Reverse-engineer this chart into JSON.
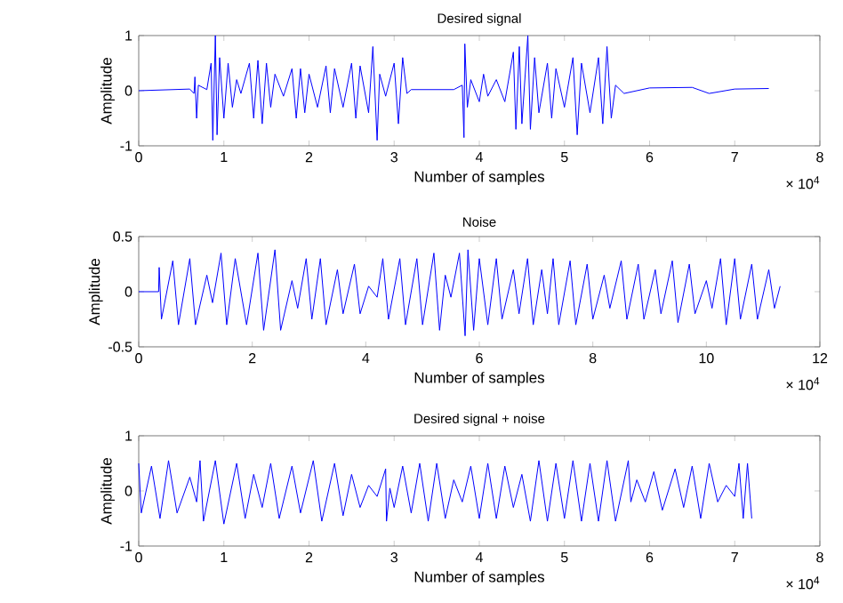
{
  "chart_data": [
    {
      "type": "line",
      "title": "Desired signal",
      "xlabel": "Number of samples",
      "ylabel": "Amplitude",
      "color": "#0000ff",
      "xlim": [
        0,
        8
      ],
      "ylim": [
        -1,
        1
      ],
      "xticks": [
        0,
        1,
        2,
        3,
        4,
        5,
        6,
        7,
        8
      ],
      "yticks": [
        -1,
        0,
        1
      ],
      "annotations": [
        "× 10$^{4}$"
      ],
      "x": [
        0,
        0.6,
        0.65,
        0.66,
        0.68,
        0.7,
        0.8,
        0.85,
        0.87,
        0.9,
        0.92,
        0.95,
        1.0,
        1.05,
        1.1,
        1.15,
        1.2,
        1.3,
        1.35,
        1.4,
        1.45,
        1.5,
        1.55,
        1.6,
        1.7,
        1.8,
        1.85,
        1.9,
        1.95,
        2.0,
        2.1,
        2.2,
        2.25,
        2.3,
        2.4,
        2.5,
        2.55,
        2.6,
        2.7,
        2.75,
        2.8,
        2.83,
        2.9,
        3.0,
        3.05,
        3.1,
        3.15,
        3.2,
        3.7,
        3.8,
        3.82,
        3.83,
        3.86,
        3.9,
        4.0,
        4.05,
        4.1,
        4.2,
        4.3,
        4.4,
        4.43,
        4.47,
        4.5,
        4.57,
        4.6,
        4.65,
        4.7,
        4.8,
        4.85,
        4.9,
        5.0,
        5.1,
        5.15,
        5.2,
        5.3,
        5.4,
        5.45,
        5.5,
        5.55,
        5.6,
        5.7,
        6.0,
        6.5,
        6.7,
        7.0,
        7.4
      ],
      "values": [
        0,
        0.03,
        -0.05,
        0.25,
        -0.5,
        0.1,
        0.02,
        0.5,
        -0.9,
        1.0,
        -0.8,
        0.6,
        -0.5,
        0.5,
        -0.3,
        0.2,
        -0.05,
        0.5,
        -0.5,
        0.55,
        -0.6,
        0.5,
        -0.3,
        0.3,
        -0.1,
        0.4,
        -0.5,
        0.4,
        -0.4,
        0.3,
        -0.3,
        0.45,
        -0.4,
        0.4,
        -0.3,
        0.5,
        -0.5,
        0.45,
        -0.4,
        0.8,
        -0.9,
        0.3,
        -0.1,
        0.5,
        -0.6,
        0.6,
        -0.05,
        0.02,
        0.02,
        0.1,
        -0.85,
        0.85,
        -0.3,
        0.2,
        -0.2,
        0.3,
        -0.1,
        0.2,
        -0.2,
        0.7,
        -0.7,
        0.8,
        -0.6,
        1.0,
        -0.7,
        0.6,
        -0.4,
        0.5,
        -0.5,
        0.4,
        -0.3,
        0.6,
        -0.8,
        0.5,
        -0.4,
        0.6,
        -0.6,
        0.8,
        -0.5,
        0.1,
        -0.05,
        0.05,
        0.06,
        -0.05,
        0.03,
        0.04
      ]
    },
    {
      "type": "line",
      "title": "Noise",
      "xlabel": "Number of samples",
      "ylabel": "Amplitude",
      "color": "#0000ff",
      "xlim": [
        0,
        12
      ],
      "ylim": [
        -0.5,
        0.5
      ],
      "xticks": [
        0,
        2,
        4,
        6,
        8,
        10,
        12
      ],
      "yticks": [
        -0.5,
        0,
        0.5
      ],
      "annotations": [
        "× 10$^{4}$"
      ],
      "x": [
        0,
        0.35,
        0.36,
        0.4,
        0.6,
        0.7,
        0.9,
        1.0,
        1.2,
        1.3,
        1.45,
        1.55,
        1.7,
        1.9,
        2.1,
        2.2,
        2.4,
        2.5,
        2.7,
        2.8,
        2.95,
        3.05,
        3.2,
        3.3,
        3.5,
        3.6,
        3.8,
        3.9,
        4.05,
        4.2,
        4.3,
        4.4,
        4.6,
        4.7,
        4.9,
        5.0,
        5.2,
        5.3,
        5.4,
        5.5,
        5.65,
        5.75,
        5.8,
        5.9,
        6.0,
        6.15,
        6.3,
        6.4,
        6.6,
        6.7,
        6.85,
        6.95,
        7.1,
        7.2,
        7.3,
        7.4,
        7.6,
        7.7,
        7.9,
        8.0,
        8.2,
        8.3,
        8.5,
        8.6,
        8.8,
        8.9,
        9.1,
        9.2,
        9.4,
        9.5,
        9.7,
        9.8,
        10.0,
        10.1,
        10.25,
        10.35,
        10.5,
        10.6,
        10.8,
        10.9,
        11.1,
        11.2,
        11.3
      ],
      "values": [
        0,
        0,
        0.22,
        -0.25,
        0.28,
        -0.3,
        0.3,
        -0.3,
        0.15,
        -0.1,
        0.35,
        -0.3,
        0.3,
        -0.3,
        0.35,
        -0.35,
        0.38,
        -0.35,
        0.1,
        -0.15,
        0.3,
        -0.25,
        0.3,
        -0.3,
        0.2,
        -0.2,
        0.25,
        -0.2,
        0.05,
        -0.05,
        0.3,
        -0.25,
        0.3,
        -0.3,
        0.3,
        -0.3,
        0.35,
        -0.35,
        0.15,
        -0.05,
        0.35,
        -0.4,
        0.38,
        -0.35,
        0.3,
        -0.3,
        0.3,
        -0.25,
        0.2,
        -0.2,
        0.3,
        -0.3,
        0.2,
        -0.2,
        0.3,
        -0.3,
        0.28,
        -0.3,
        0.25,
        -0.25,
        0.15,
        -0.15,
        0.28,
        -0.25,
        0.25,
        -0.25,
        0.2,
        -0.2,
        0.28,
        -0.28,
        0.25,
        -0.2,
        0.1,
        -0.15,
        0.3,
        -0.3,
        0.3,
        -0.25,
        0.25,
        -0.25,
        0.2,
        -0.15,
        0.05
      ]
    },
    {
      "type": "line",
      "title": "Desired signal + noise",
      "xlabel": "Number of samples",
      "ylabel": "Amplitude",
      "color": "#0000ff",
      "xlim": [
        0,
        8
      ],
      "ylim": [
        -1,
        1
      ],
      "xticks": [
        0,
        1,
        2,
        3,
        4,
        5,
        6,
        7,
        8
      ],
      "yticks": [
        -1,
        0,
        1
      ],
      "annotations": [
        "× 10$^{4}$"
      ],
      "x": [
        0,
        0.03,
        0.15,
        0.25,
        0.35,
        0.45,
        0.6,
        0.68,
        0.72,
        0.76,
        0.9,
        1.0,
        1.15,
        1.25,
        1.35,
        1.45,
        1.55,
        1.65,
        1.8,
        1.9,
        2.05,
        2.15,
        2.3,
        2.4,
        2.5,
        2.6,
        2.7,
        2.8,
        2.9,
        2.91,
        2.95,
        3.0,
        3.1,
        3.2,
        3.3,
        3.4,
        3.5,
        3.6,
        3.7,
        3.8,
        3.9,
        4.0,
        4.1,
        4.2,
        4.3,
        4.4,
        4.5,
        4.6,
        4.7,
        4.8,
        4.9,
        5.0,
        5.1,
        5.2,
        5.3,
        5.4,
        5.5,
        5.6,
        5.75,
        5.78,
        5.85,
        5.95,
        6.05,
        6.15,
        6.3,
        6.4,
        6.5,
        6.6,
        6.7,
        6.8,
        6.9,
        7.0,
        7.05,
        7.1,
        7.15,
        7.2
      ],
      "values": [
        0.5,
        -0.4,
        0.45,
        -0.5,
        0.55,
        -0.4,
        0.25,
        -0.2,
        0.55,
        -0.55,
        0.55,
        -0.6,
        0.5,
        -0.5,
        0.3,
        -0.3,
        0.5,
        -0.5,
        0.45,
        -0.4,
        0.55,
        -0.55,
        0.5,
        -0.45,
        0.3,
        -0.3,
        0.1,
        -0.1,
        0.4,
        -0.55,
        0.05,
        -0.3,
        0.45,
        -0.4,
        0.5,
        -0.55,
        0.5,
        -0.5,
        0.2,
        -0.2,
        0.45,
        -0.5,
        0.5,
        -0.5,
        0.45,
        -0.3,
        0.3,
        -0.55,
        0.55,
        -0.55,
        0.5,
        -0.5,
        0.55,
        -0.55,
        0.5,
        -0.55,
        0.55,
        -0.55,
        0.55,
        -0.2,
        0.2,
        -0.2,
        0.35,
        -0.35,
        0.4,
        -0.3,
        0.45,
        -0.5,
        0.5,
        -0.2,
        0.1,
        -0.1,
        0.5,
        -0.5,
        0.5,
        -0.5
      ]
    }
  ]
}
